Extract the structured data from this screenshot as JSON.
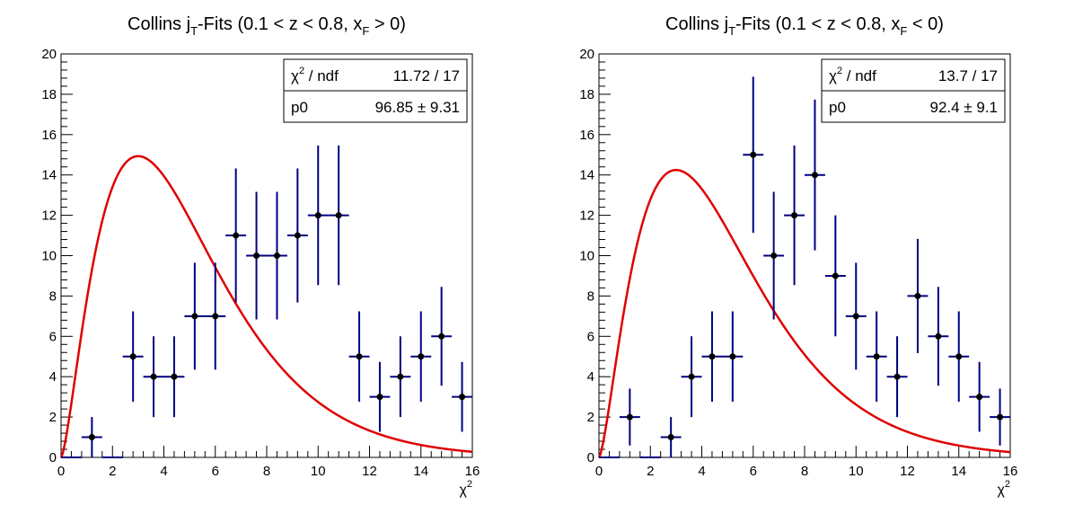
{
  "chart_data": [
    {
      "type": "scatter",
      "title_main": "Collins j",
      "title_sub": "T",
      "title_mid": "-Fits (0.1 < z < 0.8, x",
      "title_sub2": "F",
      "title_end": " > 0)",
      "xlabel_base": "χ",
      "xlabel_sup": "2",
      "xlim": [
        0,
        16
      ],
      "ylim": [
        0,
        20
      ],
      "x_ticks": [
        0,
        2,
        4,
        6,
        8,
        10,
        12,
        14,
        16
      ],
      "y_ticks": [
        0,
        2,
        4,
        6,
        8,
        10,
        12,
        14,
        16,
        18,
        20
      ],
      "stats": {
        "chi2_label_base": "χ",
        "chi2_label_sup": "2",
        "chi2_label_rest": " / ndf",
        "chi2_value": "11.72 / 17",
        "p0_label": "p0",
        "p0_value": "96.85 ± 9.31"
      },
      "series": [
        {
          "x": [
            0.4,
            1.2,
            2.0,
            2.8,
            3.6,
            4.4,
            5.2,
            6.0,
            6.8,
            7.6,
            8.4,
            9.2,
            10.0,
            10.8,
            11.6,
            12.4,
            13.2,
            14.0,
            14.8,
            15.6
          ],
          "y": [
            0,
            1,
            0,
            5,
            4,
            4,
            7,
            7,
            11,
            10,
            10,
            11,
            12,
            12,
            5,
            3,
            4,
            5,
            6,
            3
          ],
          "yerr": [
            0,
            1.0,
            0,
            2.24,
            2.0,
            2.0,
            2.65,
            2.65,
            3.32,
            3.16,
            3.16,
            3.32,
            3.46,
            3.46,
            2.24,
            1.73,
            2.0,
            2.24,
            2.45,
            1.73
          ],
          "xerr": 0.4
        }
      ],
      "fit": {
        "p0": 96.85
      }
    },
    {
      "type": "scatter",
      "title_main": "Collins j",
      "title_sub": "T",
      "title_mid": "-Fits (0.1 < z < 0.8, x",
      "title_sub2": "F",
      "title_end": " < 0)",
      "xlabel_base": "χ",
      "xlabel_sup": "2",
      "xlim": [
        0,
        16
      ],
      "ylim": [
        0,
        20
      ],
      "x_ticks": [
        0,
        2,
        4,
        6,
        8,
        10,
        12,
        14,
        16
      ],
      "y_ticks": [
        0,
        2,
        4,
        6,
        8,
        10,
        12,
        14,
        16,
        18,
        20
      ],
      "stats": {
        "chi2_label_base": "χ",
        "chi2_label_sup": "2",
        "chi2_label_rest": " / ndf",
        "chi2_value": "13.7 / 17",
        "p0_label": "p0",
        "p0_value": "92.4 ± 9.1"
      },
      "series": [
        {
          "x": [
            0.4,
            1.2,
            2.0,
            2.8,
            3.6,
            4.4,
            5.2,
            6.0,
            6.8,
            7.6,
            8.4,
            9.2,
            10.0,
            10.8,
            11.6,
            12.4,
            13.2,
            14.0,
            14.8,
            15.6
          ],
          "y": [
            0,
            2,
            0,
            1,
            4,
            5,
            5,
            15,
            10,
            12,
            14,
            9,
            7,
            5,
            4,
            8,
            6,
            5,
            3,
            2
          ],
          "yerr": [
            0,
            1.41,
            0,
            1.0,
            2.0,
            2.24,
            2.24,
            3.87,
            3.16,
            3.46,
            3.74,
            3.0,
            2.65,
            2.24,
            2.0,
            2.83,
            2.45,
            2.24,
            1.73,
            1.41
          ],
          "xerr": 0.4
        }
      ],
      "fit": {
        "p0": 92.4
      }
    }
  ]
}
